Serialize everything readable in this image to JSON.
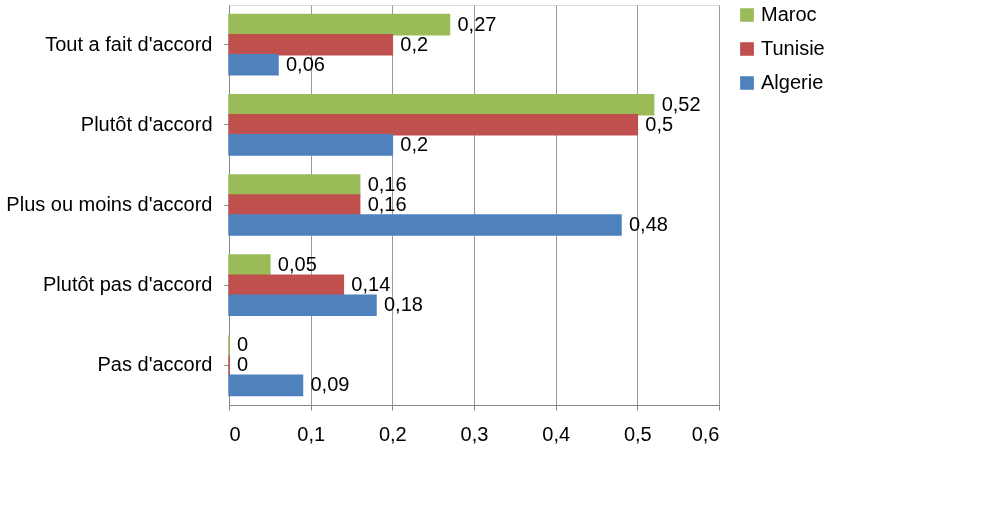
{
  "chart_data": {
    "type": "bar",
    "orientation": "horizontal",
    "categories": [
      "Tout a fait d'accord",
      "Plutôt d'accord",
      "Plus ou moins d'accord",
      "Plutôt pas d'accord",
      "Pas d'accord"
    ],
    "series": [
      {
        "name": "Maroc",
        "color": "#9bbb59",
        "values": [
          0.27,
          0.52,
          0.16,
          0.05,
          0
        ],
        "value_labels": [
          "0,27",
          "0,52",
          "0,16",
          "0,05",
          "0"
        ]
      },
      {
        "name": "Tunisie",
        "color": "#c0504d",
        "values": [
          0.2,
          0.5,
          0.16,
          0.14,
          0
        ],
        "value_labels": [
          "0,2",
          "0,5",
          "0,16",
          "0,14",
          "0"
        ]
      },
      {
        "name": "Algerie",
        "color": "#4f81bd",
        "values": [
          0.06,
          0.2,
          0.48,
          0.18,
          0.09
        ],
        "value_labels": [
          "0,06",
          "0,2",
          "0,48",
          "0,18",
          "0,09"
        ]
      }
    ],
    "xlim": [
      0,
      0.6
    ],
    "xticks": [
      0,
      {
        "value": 0.1,
        "label": "0,1"
      },
      {
        "value": 0.2,
        "label": "0,2"
      },
      {
        "value": 0.3,
        "label": "0,3"
      },
      {
        "value": 0.4,
        "label": "0,4"
      },
      {
        "value": 0.5,
        "label": "0,5"
      },
      {
        "value": 0.6,
        "label": "0,6"
      }
    ],
    "grid": "x",
    "legend": "right"
  }
}
